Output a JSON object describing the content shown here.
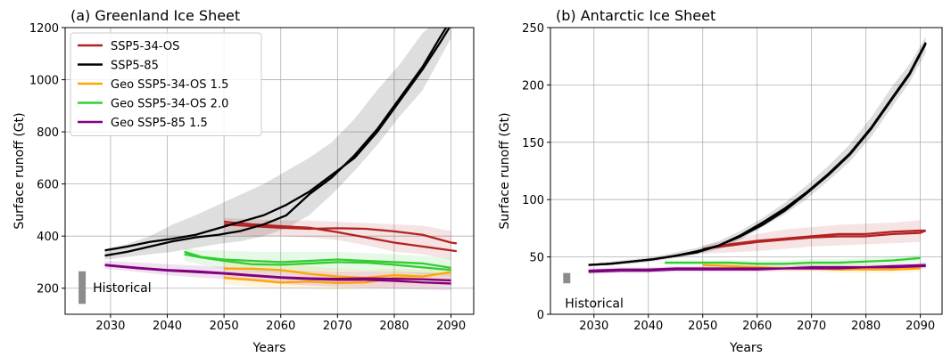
{
  "chart_data": [
    {
      "type": "line",
      "title": "(a) Greenland Ice Sheet",
      "xlabel": "Years",
      "ylabel": "Surface runoff (Gt)",
      "xlim": [
        2022,
        2094
      ],
      "ylim": [
        100,
        1200
      ],
      "xticks": [
        2030,
        2040,
        2050,
        2060,
        2070,
        2080,
        2090
      ],
      "yticks": [
        200,
        400,
        600,
        800,
        1000,
        1200
      ],
      "grid": true,
      "legend": "top-left",
      "historical": {
        "label": "Historical",
        "x": 2025,
        "y": [
          140,
          265
        ],
        "color": "#8c8c8c"
      },
      "series": [
        {
          "name": "SSP5-34-OS",
          "color": "#b22222",
          "x": [
            2050,
            2055,
            2060,
            2065,
            2070,
            2075,
            2080,
            2085,
            2090,
            2091
          ],
          "y_runs": [
            [
              455,
              445,
              438,
              432,
              415,
              395,
              375,
              360,
              345,
              342
            ],
            [
              445,
              438,
              432,
              428,
              430,
              428,
              418,
              405,
              375,
              372
            ]
          ],
          "band": {
            "upper": [
              470,
              465,
              460,
              460,
              455,
              450,
              445,
              440,
              420
            ],
            "lower": [
              410,
              400,
              400,
              395,
              385,
              365,
              340,
              330,
              310
            ]
          },
          "band_x": [
            2050,
            2055,
            2060,
            2065,
            2070,
            2075,
            2080,
            2085,
            2090
          ]
        },
        {
          "name": "SSP5-85",
          "color": "#000000",
          "x": [
            2029,
            2033,
            2037,
            2041,
            2045,
            2049,
            2053,
            2057,
            2061,
            2065,
            2069,
            2073,
            2077,
            2081,
            2085,
            2088,
            2090
          ],
          "y_runs": [
            [
              345,
              360,
              378,
              390,
              405,
              430,
              455,
              480,
              520,
              570,
              635,
              700,
              800,
              920,
              1040,
              1140,
              1210
            ],
            [
              325,
              340,
              360,
              380,
              395,
              405,
              420,
              445,
              480,
              560,
              625,
              710,
              810,
              930,
              1050,
              1160,
              1230
            ]
          ],
          "band": {
            "upper": [
              350,
              370,
              400,
              445,
              480,
              520,
              560,
              600,
              650,
              700,
              760,
              850,
              960,
              1060,
              1180,
              1230,
              1230
            ],
            "lower": [
              310,
              320,
              330,
              340,
              355,
              370,
              380,
              400,
              430,
              480,
              560,
              650,
              750,
              860,
              960,
              1080,
              1160
            ]
          },
          "band_x": [
            2029,
            2033,
            2037,
            2041,
            2045,
            2049,
            2053,
            2057,
            2061,
            2065,
            2069,
            2073,
            2077,
            2081,
            2085,
            2088,
            2090
          ]
        },
        {
          "name": "Geo SSP5-34-OS 1.5",
          "color": "#ffa500",
          "x": [
            2050,
            2055,
            2060,
            2065,
            2070,
            2075,
            2080,
            2085,
            2090
          ],
          "y_runs": [
            [
              240,
              232,
              222,
              225,
              220,
              222,
              240,
              235,
              230
            ],
            [
              275,
              275,
              270,
              255,
              245,
              240,
              250,
              245,
              262
            ]
          ],
          "band": {
            "upper": [
              300,
              300,
              295,
              285,
              275,
              270,
              275,
              270,
              275
            ],
            "lower": [
              215,
              205,
              200,
              200,
              195,
              200,
              205,
              205,
              210
            ]
          },
          "band_x": [
            2050,
            2055,
            2060,
            2065,
            2070,
            2075,
            2080,
            2085,
            2090
          ]
        },
        {
          "name": "Geo SSP5-34-OS 2.0",
          "color": "#32cd32",
          "x": [
            2043,
            2046,
            2050,
            2055,
            2060,
            2065,
            2070,
            2075,
            2080,
            2085,
            2090
          ],
          "y_runs": [
            [
              340,
              320,
              310,
              305,
              300,
              305,
              310,
              305,
              300,
              295,
              278
            ],
            [
              330,
              318,
              305,
              292,
              290,
              295,
              300,
              298,
              290,
              280,
              270
            ]
          ],
          "band": {
            "upper": [
              355,
              345,
              345,
              340,
              340,
              340,
              340,
              335,
              330,
              325,
              315
            ],
            "lower": [
              305,
              290,
              275,
              265,
              260,
              265,
              268,
              265,
              260,
              255,
              245
            ]
          },
          "band_x": [
            2043,
            2046,
            2050,
            2055,
            2060,
            2065,
            2070,
            2075,
            2080,
            2085,
            2090
          ]
        },
        {
          "name": "Geo SSP5-85 1.5",
          "color": "#800080",
          "x": [
            2029,
            2035,
            2040,
            2045,
            2050,
            2055,
            2060,
            2065,
            2070,
            2075,
            2080,
            2085,
            2090
          ],
          "y_runs": [
            [
              290,
              278,
              270,
              265,
              258,
              250,
              242,
              238,
              236,
              238,
              236,
              234,
              230
            ],
            [
              288,
              276,
              268,
              262,
              256,
              248,
              240,
              235,
              232,
              232,
              228,
              222,
              218
            ]
          ],
          "band": {
            "upper": [
              305,
              298,
              292,
              287,
              282,
              276,
              270,
              266,
              264,
              264,
              262,
              260,
              258
            ],
            "lower": [
              275,
              262,
              250,
              242,
              235,
              226,
              216,
              210,
              205,
              203,
              198,
              195,
              192
            ]
          },
          "band_x": [
            2029,
            2035,
            2040,
            2045,
            2050,
            2055,
            2060,
            2065,
            2070,
            2075,
            2080,
            2085,
            2090
          ]
        }
      ]
    },
    {
      "type": "line",
      "title": "(b) Antarctic Ice Sheet",
      "xlabel": "Years",
      "ylabel": "Surface runoff (Gt)",
      "xlim": [
        2022,
        2094
      ],
      "ylim": [
        0,
        250
      ],
      "xticks": [
        2030,
        2040,
        2050,
        2060,
        2070,
        2080,
        2090
      ],
      "yticks": [
        0,
        50,
        100,
        150,
        200,
        250
      ],
      "grid": true,
      "historical": {
        "label": "Historical",
        "x": 2025,
        "y": [
          27,
          36
        ],
        "color": "#8c8c8c"
      },
      "series": [
        {
          "name": "SSP5-34-OS",
          "color": "#b22222",
          "x": [
            2050,
            2055,
            2060,
            2065,
            2070,
            2075,
            2080,
            2085,
            2090,
            2091
          ],
          "y_runs": [
            [
              57,
              60,
              63,
              65,
              67,
              68,
              68,
              70,
              71,
              73
            ],
            [
              57,
              61,
              64,
              66,
              68,
              70,
              70,
              72,
              73,
              73
            ]
          ],
          "band": {
            "upper": [
              60,
              65,
              70,
              74,
              76,
              78,
              79,
              80,
              82
            ],
            "lower": [
              53,
              54,
              55,
              57,
              59,
              60,
              61,
              62,
              63
            ]
          },
          "band_x": [
            2050,
            2055,
            2060,
            2065,
            2070,
            2075,
            2080,
            2085,
            2090
          ]
        },
        {
          "name": "SSP5-85",
          "color": "#000000",
          "x": [
            2029,
            2033,
            2037,
            2041,
            2045,
            2049,
            2053,
            2057,
            2061,
            2065,
            2069,
            2073,
            2077,
            2081,
            2085,
            2088,
            2091
          ],
          "y_runs": [
            [
              43,
              44,
              46,
              48,
              51,
              55,
              60,
              69,
              80,
              92,
              106,
              122,
              140,
              163,
              190,
              210,
              237
            ],
            [
              43,
              44,
              46,
              48,
              51,
              54,
              60,
              68,
              78,
              90,
              105,
              121,
              139,
              162,
              189,
              209,
              236
            ]
          ],
          "band": {
            "upper": [
              44,
              46,
              48,
              50,
              54,
              58,
              64,
              73,
              84,
              97,
              112,
              129,
              148,
              172,
              200,
              218,
              242
            ],
            "lower": [
              42,
              43,
              44,
              46,
              49,
              52,
              57,
              65,
              76,
              87,
              100,
              116,
              133,
              155,
              182,
              202,
              228
            ]
          },
          "band_x": [
            2029,
            2033,
            2037,
            2041,
            2045,
            2049,
            2053,
            2057,
            2061,
            2065,
            2069,
            2073,
            2077,
            2081,
            2085,
            2088,
            2091
          ]
        },
        {
          "name": "Geo SSP5-34-OS 1.5",
          "color": "#ffa500",
          "x": [
            2050,
            2055,
            2060,
            2065,
            2070,
            2075,
            2080,
            2085,
            2090
          ],
          "y_runs": [
            [
              43,
              42,
              41,
              40,
              40,
              39,
              39,
              39,
              40
            ]
          ],
          "band": {
            "upper": [
              46,
              45,
              44,
              43,
              43,
              43,
              43,
              43,
              44
            ],
            "lower": [
              40,
              39,
              38,
              37,
              37,
              36,
              36,
              36,
              37
            ]
          },
          "band_x": [
            2050,
            2055,
            2060,
            2065,
            2070,
            2075,
            2080,
            2085,
            2090
          ]
        },
        {
          "name": "Geo SSP5-34-OS 2.0",
          "color": "#32cd32",
          "x": [
            2043,
            2050,
            2055,
            2060,
            2065,
            2070,
            2075,
            2080,
            2085,
            2090
          ],
          "y_runs": [
            [
              45,
              45,
              45,
              44,
              44,
              45,
              45,
              46,
              47,
              49
            ]
          ],
          "band": {
            "upper": [
              47,
              47,
              47,
              47,
              47,
              48,
              48,
              49,
              50,
              52
            ],
            "lower": [
              43,
              43,
              43,
              42,
              42,
              42,
              42,
              43,
              44,
              46
            ]
          },
          "band_x": [
            2043,
            2050,
            2055,
            2060,
            2065,
            2070,
            2075,
            2080,
            2085,
            2090
          ]
        },
        {
          "name": "Geo SSP5-85 1.5",
          "color": "#800080",
          "x": [
            2029,
            2035,
            2040,
            2045,
            2050,
            2055,
            2060,
            2065,
            2070,
            2075,
            2080,
            2085,
            2091
          ],
          "y_runs": [
            [
              38,
              39,
              39,
              40,
              40,
              40,
              40,
              40,
              41,
              41,
              41,
              42,
              43
            ],
            [
              37,
              38,
              38,
              39,
              39,
              39,
              39,
              40,
              40,
              40,
              41,
              41,
              42
            ]
          ],
          "band": {
            "upper": [
              40,
              41,
              41,
              42,
              42,
              42,
              42,
              42,
              43,
              43,
              43,
              44,
              45
            ],
            "lower": [
              35,
              36,
              36,
              37,
              37,
              37,
              37,
              38,
              38,
              38,
              39,
              39,
              40
            ]
          },
          "band_x": [
            2029,
            2035,
            2040,
            2045,
            2050,
            2055,
            2060,
            2065,
            2070,
            2075,
            2080,
            2085,
            2091
          ]
        }
      ]
    }
  ]
}
